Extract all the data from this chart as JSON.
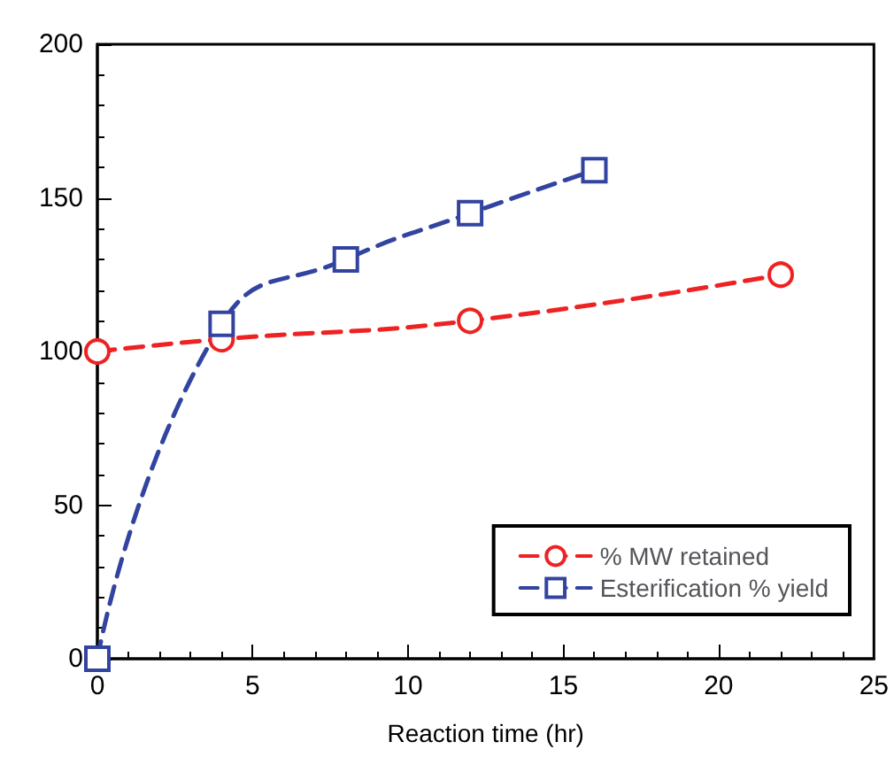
{
  "chart_data": {
    "type": "line",
    "xlabel": "Reaction time (hr)",
    "xlim": [
      0,
      25
    ],
    "xticks": [
      0,
      5,
      10,
      15,
      20,
      25
    ],
    "ylim": [
      0,
      200
    ],
    "yticks": [
      0,
      50,
      100,
      150,
      200
    ],
    "grid": false,
    "legend": "bottom right",
    "line_style": "dashed",
    "series": [
      {
        "name": "% MW retained",
        "color": "#ee2222",
        "marker": "circle",
        "x": [
          0,
          4,
          12,
          22
        ],
        "values": [
          100,
          104,
          110,
          125
        ]
      },
      {
        "name": "Esterification % yield",
        "color": "#3344a0",
        "marker": "square",
        "x": [
          0,
          4,
          8,
          12,
          16
        ],
        "values": [
          0,
          109,
          130,
          145,
          159
        ]
      }
    ]
  }
}
